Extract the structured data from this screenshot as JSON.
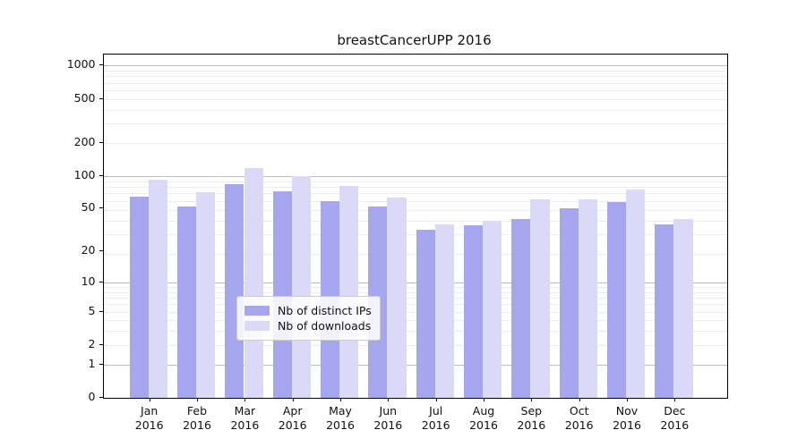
{
  "chart_data": {
    "type": "bar",
    "title": "breastCancerUPP 2016",
    "categories": [
      "Jan",
      "Feb",
      "Mar",
      "Apr",
      "May",
      "Jun",
      "Jul",
      "Aug",
      "Sep",
      "Oct",
      "Nov",
      "Dec"
    ],
    "year_label": "2016",
    "series": [
      {
        "name": "Nb of distinct IPs",
        "color": "#a6a6ee",
        "values": [
          65,
          52,
          84,
          72,
          59,
          52,
          32,
          35,
          40,
          50,
          58,
          36
        ]
      },
      {
        "name": "Nb of downloads",
        "color": "#dadaf8",
        "values": [
          92,
          71,
          118,
          100,
          81,
          63,
          36,
          39,
          61,
          61,
          75,
          40
        ]
      }
    ],
    "xlabel": "",
    "ylabel": "",
    "y_ticks": [
      1000,
      500,
      200,
      100,
      50,
      20,
      10,
      5,
      2,
      1,
      0
    ],
    "y_major_gridline_values": [
      1,
      10,
      100,
      1000
    ],
    "scale": "log10(1+x)",
    "ylim": [
      0,
      1256
    ],
    "grid": true,
    "legend_position": "lower center"
  }
}
